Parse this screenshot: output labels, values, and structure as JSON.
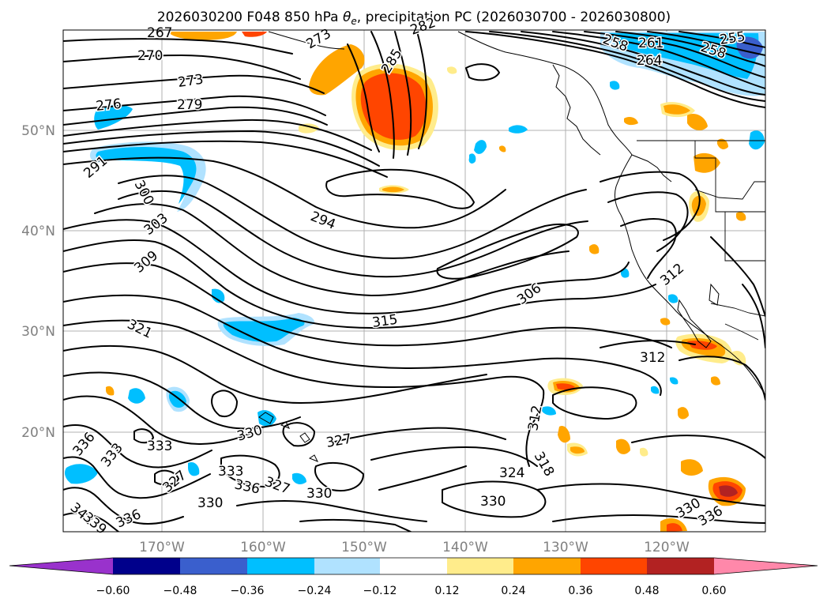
{
  "title": "2026030200 F048 850 hPa θe, precipitation PC (2026030700 - 2026030800)",
  "title_parts": {
    "pre": "2026030200 F048 850 hPa ",
    "theta": "θ",
    "sub": "e",
    "post": ", precipitation PC (2026030700 - 2026030800)"
  },
  "map": {
    "lon_labels": [
      "170°W",
      "160°W",
      "150°W",
      "140°W",
      "130°W",
      "120°W"
    ],
    "lat_labels": [
      "50°N",
      "40°N",
      "30°N",
      "20°N"
    ],
    "contour_labels": [
      "267",
      "270",
      "273",
      "276",
      "279",
      "273",
      "285",
      "282",
      "258",
      "261",
      "264",
      "255",
      "258",
      "291",
      "300",
      "303",
      "309",
      "294",
      "306",
      "312",
      "321",
      "315",
      "312",
      "312",
      "318",
      "324",
      "330",
      "336",
      "333",
      "333",
      "330",
      "327",
      "333",
      "336",
      "327",
      "330",
      "327",
      "330",
      "336",
      "342",
      "339",
      "336",
      "330"
    ]
  },
  "colorbar": {
    "ticks": [
      "−0.60",
      "−0.48",
      "−0.36",
      "−0.24",
      "−0.12",
      "0.12",
      "0.24",
      "0.36",
      "0.48",
      "0.60"
    ],
    "colors": [
      "#9932cc",
      "#00008b",
      "#3a5fcd",
      "#00bfff",
      "#b0e2ff",
      "#ffffff",
      "#ffec8b",
      "#ffa500",
      "#ff4500",
      "#b22222",
      "#ff88aa"
    ]
  }
}
